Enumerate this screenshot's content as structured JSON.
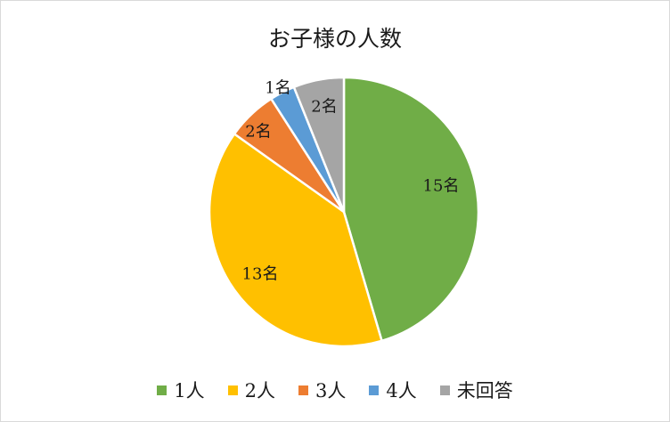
{
  "chart_data": {
    "type": "pie",
    "title": "お子様の人数",
    "categories": [
      "1人",
      "2人",
      "3人",
      "4人",
      "未回答"
    ],
    "values": [
      15,
      13,
      2,
      1,
      2
    ],
    "data_labels": [
      "15名",
      "13名",
      "2名",
      "1名",
      "2名"
    ],
    "colors": [
      "#70AD47",
      "#FFC000",
      "#ED7D31",
      "#5B9BD5",
      "#A5A5A5"
    ],
    "start_angle_deg": 0,
    "direction": "clockwise",
    "legend_position": "bottom",
    "slice_border_color": "#FFFFFF"
  }
}
